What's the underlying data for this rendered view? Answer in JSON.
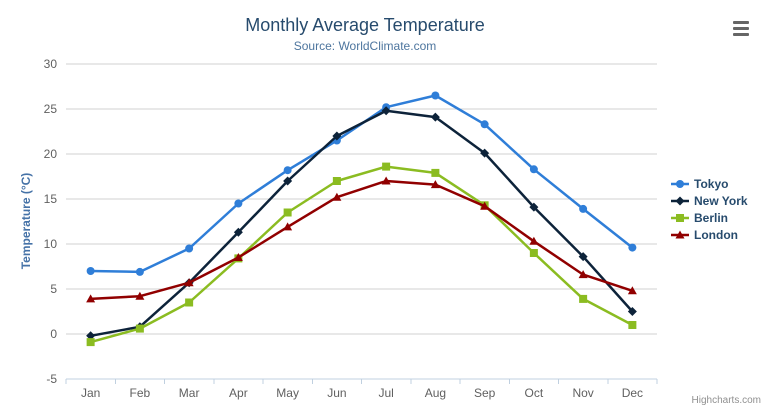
{
  "chart_data": {
    "type": "line",
    "title": "Monthly Average Temperature",
    "subtitle": "Source: WorldClimate.com",
    "categories": [
      "Jan",
      "Feb",
      "Mar",
      "Apr",
      "May",
      "Jun",
      "Jul",
      "Aug",
      "Sep",
      "Oct",
      "Nov",
      "Dec"
    ],
    "series": [
      {
        "name": "Tokyo",
        "color": "#2f7ed8",
        "marker": "circle",
        "values": [
          7.0,
          6.9,
          9.5,
          14.5,
          18.2,
          21.5,
          25.2,
          26.5,
          23.3,
          18.3,
          13.9,
          9.6
        ]
      },
      {
        "name": "New York",
        "color": "#0d233a",
        "marker": "diamond",
        "values": [
          -0.2,
          0.8,
          5.7,
          11.3,
          17.0,
          22.0,
          24.8,
          24.1,
          20.1,
          14.1,
          8.6,
          2.5
        ]
      },
      {
        "name": "Berlin",
        "color": "#8bbc21",
        "marker": "square",
        "values": [
          -0.9,
          0.6,
          3.5,
          8.4,
          13.5,
          17.0,
          18.6,
          17.9,
          14.3,
          9.0,
          3.9,
          1.0
        ]
      },
      {
        "name": "London",
        "color": "#910000",
        "marker": "triangle",
        "values": [
          3.9,
          4.2,
          5.7,
          8.5,
          11.9,
          15.2,
          17.0,
          16.6,
          14.2,
          10.3,
          6.6,
          4.8
        ]
      }
    ],
    "xlabel": "",
    "ylabel": "Temperature (°C)",
    "ylim": [
      -5,
      30
    ],
    "ytick_interval": 5,
    "grid": true,
    "legend_position": "right",
    "grid_color": "#D0D0D0",
    "axis_line_color": "#C0D0E0",
    "label_color": "#606060"
  },
  "credits": {
    "label": "Highcharts.com"
  }
}
